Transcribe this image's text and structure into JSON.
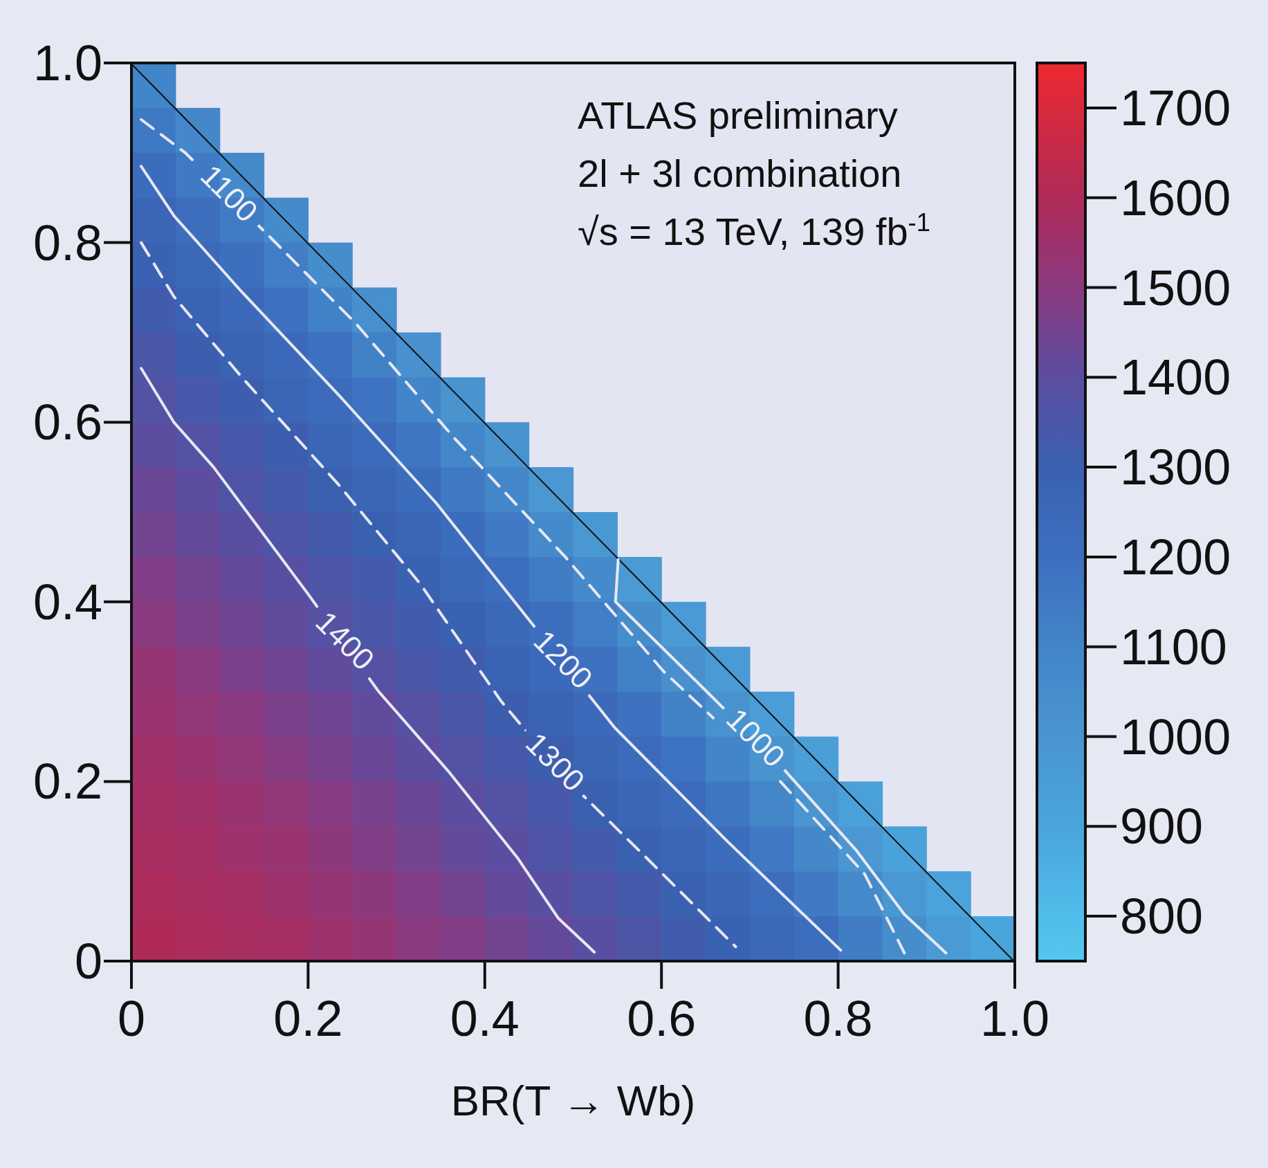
{
  "chart_data": {
    "type": "heatmap",
    "xlabel": "BR(T → Wb)",
    "xlim": [
      0,
      1
    ],
    "ylim": [
      0,
      1
    ],
    "xticks": [
      0,
      0.2,
      0.4,
      0.6,
      0.8,
      {
        "value": 1,
        "label": "1.0"
      }
    ],
    "yticks": [
      0,
      0.2,
      0.4,
      0.6,
      0.8,
      {
        "value": 1,
        "label": "1.0"
      }
    ],
    "clim": [
      750,
      1750
    ],
    "cticks": [
      800,
      900,
      1000,
      1100,
      1200,
      1300,
      1400,
      1500,
      1600,
      1700
    ],
    "cells": [
      [
        1100,
        null,
        null,
        null,
        null,
        null,
        null,
        null,
        null,
        null,
        null,
        null,
        null,
        null,
        null,
        null,
        null,
        null,
        null,
        null
      ],
      [
        1160,
        1080,
        null,
        null,
        null,
        null,
        null,
        null,
        null,
        null,
        null,
        null,
        null,
        null,
        null,
        null,
        null,
        null,
        null,
        null
      ],
      [
        1220,
        1150,
        1070,
        null,
        null,
        null,
        null,
        null,
        null,
        null,
        null,
        null,
        null,
        null,
        null,
        null,
        null,
        null,
        null,
        null
      ],
      [
        1260,
        1210,
        1140,
        1060,
        null,
        null,
        null,
        null,
        null,
        null,
        null,
        null,
        null,
        null,
        null,
        null,
        null,
        null,
        null,
        null
      ],
      [
        1290,
        1250,
        1200,
        1130,
        1050,
        null,
        null,
        null,
        null,
        null,
        null,
        null,
        null,
        null,
        null,
        null,
        null,
        null,
        null,
        null
      ],
      [
        1320,
        1280,
        1240,
        1190,
        1120,
        1040,
        null,
        null,
        null,
        null,
        null,
        null,
        null,
        null,
        null,
        null,
        null,
        null,
        null,
        null
      ],
      [
        1350,
        1310,
        1280,
        1240,
        1190,
        1120,
        1030,
        null,
        null,
        null,
        null,
        null,
        null,
        null,
        null,
        null,
        null,
        null,
        null,
        null
      ],
      [
        1370,
        1340,
        1310,
        1270,
        1230,
        1180,
        1100,
        1010,
        null,
        null,
        null,
        null,
        null,
        null,
        null,
        null,
        null,
        null,
        null,
        null
      ],
      [
        1400,
        1370,
        1340,
        1310,
        1270,
        1230,
        1170,
        1090,
        1010,
        null,
        null,
        null,
        null,
        null,
        null,
        null,
        null,
        null,
        null,
        null
      ],
      [
        1430,
        1400,
        1360,
        1330,
        1300,
        1260,
        1220,
        1160,
        1080,
        990,
        null,
        null,
        null,
        null,
        null,
        null,
        null,
        null,
        null,
        null
      ],
      [
        1450,
        1420,
        1390,
        1360,
        1330,
        1300,
        1260,
        1220,
        1150,
        1060,
        980,
        null,
        null,
        null,
        null,
        null,
        null,
        null,
        null,
        null
      ],
      [
        1480,
        1450,
        1420,
        1390,
        1360,
        1330,
        1290,
        1250,
        1210,
        1140,
        1060,
        970,
        null,
        null,
        null,
        null,
        null,
        null,
        null,
        null
      ],
      [
        1500,
        1470,
        1440,
        1410,
        1380,
        1350,
        1320,
        1290,
        1250,
        1200,
        1130,
        1050,
        960,
        null,
        null,
        null,
        null,
        null,
        null,
        null
      ],
      [
        1530,
        1500,
        1470,
        1440,
        1410,
        1380,
        1350,
        1320,
        1280,
        1240,
        1190,
        1120,
        1030,
        960,
        null,
        null,
        null,
        null,
        null,
        null
      ],
      [
        1540,
        1520,
        1500,
        1470,
        1440,
        1410,
        1380,
        1350,
        1310,
        1280,
        1240,
        1190,
        1110,
        1020,
        950,
        null,
        null,
        null,
        null,
        null
      ],
      [
        1560,
        1540,
        1520,
        1490,
        1460,
        1430,
        1400,
        1370,
        1340,
        1310,
        1270,
        1230,
        1180,
        1100,
        1010,
        940,
        null,
        null,
        null,
        null
      ],
      [
        1570,
        1560,
        1540,
        1520,
        1490,
        1460,
        1430,
        1400,
        1370,
        1340,
        1300,
        1270,
        1230,
        1170,
        1090,
        1000,
        930,
        null,
        null,
        null
      ],
      [
        1580,
        1570,
        1550,
        1540,
        1510,
        1480,
        1450,
        1420,
        1400,
        1360,
        1330,
        1300,
        1260,
        1220,
        1160,
        1080,
        990,
        920,
        null,
        null
      ],
      [
        1590,
        1580,
        1570,
        1550,
        1530,
        1510,
        1480,
        1450,
        1420,
        1390,
        1360,
        1330,
        1300,
        1260,
        1210,
        1150,
        1060,
        980,
        910,
        null
      ],
      [
        1600,
        1590,
        1580,
        1570,
        1550,
        1530,
        1500,
        1480,
        1450,
        1420,
        1390,
        1360,
        1320,
        1290,
        1250,
        1210,
        1140,
        1050,
        960,
        900
      ]
    ],
    "series": [
      {
        "type": "line",
        "line_style": "solid",
        "color": "#e8e8f4",
        "x": [
          0.011,
          0.048,
          0.093,
          0.199,
          0.28,
          0.36,
          0.437,
          0.483,
          0.524
        ],
        "values": [
          0.66,
          0.6,
          0.55,
          0.41,
          0.3,
          0.21,
          0.115,
          0.048,
          0.01
        ]
      },
      {
        "type": "line",
        "line_style": "dashed",
        "color": "#e8e8f4",
        "x": [
          0.011,
          0.048,
          0.125,
          0.235,
          0.327,
          0.418,
          0.49,
          0.583,
          0.684
        ],
        "values": [
          0.8,
          0.74,
          0.65,
          0.53,
          0.42,
          0.29,
          0.205,
          0.115,
          0.016
        ]
      },
      {
        "type": "line",
        "line_style": "solid",
        "color": "#e8e8f4",
        "x": [
          0.011,
          0.048,
          0.125,
          0.235,
          0.345,
          0.446,
          0.547,
          0.675,
          0.803
        ],
        "values": [
          0.885,
          0.83,
          0.745,
          0.63,
          0.51,
          0.385,
          0.26,
          0.133,
          0.012
        ]
      },
      {
        "type": "line",
        "line_style": "dashed",
        "color": "#e8e8f4",
        "x": [
          0.011,
          0.061,
          0.153,
          0.254,
          0.364,
          0.492,
          0.602,
          0.73,
          0.83,
          0.875
        ],
        "values": [
          0.937,
          0.9,
          0.81,
          0.71,
          0.584,
          0.449,
          0.323,
          0.205,
          0.097,
          0.009
        ]
      },
      {
        "type": "line",
        "line_style": "solid",
        "color": "#111111",
        "x": [
          0,
          1
        ],
        "values": [
          1,
          0
        ]
      },
      {
        "type": "line",
        "line_style": "solid",
        "color": "#e8e8f4",
        "x": [
          0.551,
          0.548,
          0.638,
          0.73,
          0.82,
          0.875,
          0.922
        ],
        "values": [
          0.447,
          0.4,
          0.313,
          0.223,
          0.124,
          0.052,
          0.009
        ]
      }
    ],
    "annotations": [
      "ATLAS preliminary",
      "2l + 3l combination",
      "√s = 13 TeV, 139 fb$^{-1}$",
      {
        "text": "1400",
        "x": 0.24,
        "y": 0.355
      },
      {
        "text": "1300",
        "x": 0.478,
        "y": 0.22
      },
      {
        "text": "1200",
        "x": 0.487,
        "y": 0.334
      },
      {
        "text": "1100",
        "x": 0.109,
        "y": 0.853
      },
      {
        "text": "1000",
        "x": 0.705,
        "y": 0.247
      }
    ]
  }
}
